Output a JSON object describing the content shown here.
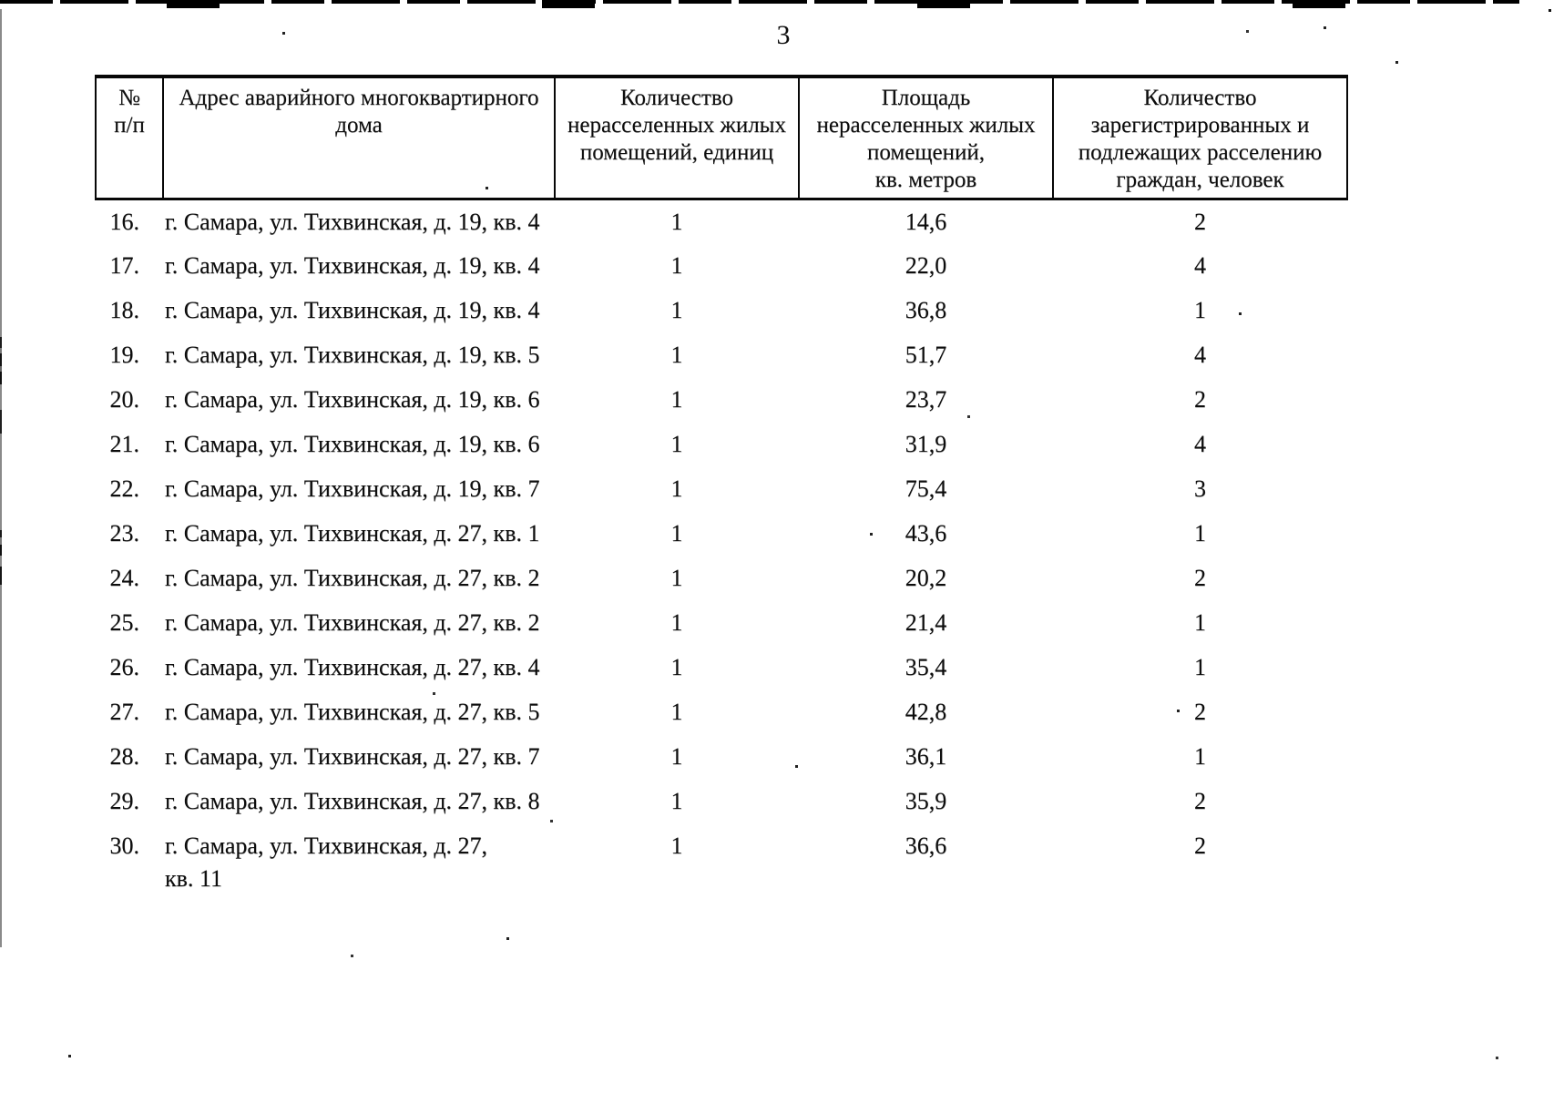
{
  "page": {
    "number": "3",
    "background": "#ffffff",
    "ink": "#0d0d0d"
  },
  "table": {
    "columns": [
      {
        "label": "№\nп/п"
      },
      {
        "label": "Адрес аварийного многоквартирного\nдома"
      },
      {
        "label": "Количество\nнерасселенных жилых\nпомещений, единиц"
      },
      {
        "label": "Площадь\nнерасселенных жилых\nпомещений,\nкв. метров"
      },
      {
        "label": "Количество\nзарегистрированных и\nподлежащих расселению\nграждан, человек"
      }
    ],
    "rows": [
      {
        "num": "16.",
        "address": "г. Самара, ул. Тихвинская, д. 19, кв. 4",
        "units": "1",
        "area": "14,6",
        "citizens": "2"
      },
      {
        "num": "17.",
        "address": "г. Самара, ул. Тихвинская, д. 19, кв. 4",
        "units": "1",
        "area": "22,0",
        "citizens": "4"
      },
      {
        "num": "18.",
        "address": "г. Самара, ул. Тихвинская, д. 19, кв. 4",
        "units": "1",
        "area": "36,8",
        "citizens": "1"
      },
      {
        "num": "19.",
        "address": "г. Самара, ул. Тихвинская, д. 19, кв. 5",
        "units": "1",
        "area": "51,7",
        "citizens": "4"
      },
      {
        "num": "20.",
        "address": "г. Самара, ул. Тихвинская, д. 19, кв. 6",
        "units": "1",
        "area": "23,7",
        "citizens": "2"
      },
      {
        "num": "21.",
        "address": "г. Самара, ул. Тихвинская, д. 19, кв. 6",
        "units": "1",
        "area": "31,9",
        "citizens": "4"
      },
      {
        "num": "22.",
        "address": "г. Самара, ул. Тихвинская, д. 19, кв. 7",
        "units": "1",
        "area": "75,4",
        "citizens": "3"
      },
      {
        "num": "23.",
        "address": "г. Самара, ул. Тихвинская, д. 27, кв. 1",
        "units": "1",
        "area": "43,6",
        "citizens": "1"
      },
      {
        "num": "24.",
        "address": "г. Самара, ул. Тихвинская, д. 27, кв. 2",
        "units": "1",
        "area": "20,2",
        "citizens": "2"
      },
      {
        "num": "25.",
        "address": "г. Самара, ул. Тихвинская, д. 27, кв. 2",
        "units": "1",
        "area": "21,4",
        "citizens": "1"
      },
      {
        "num": "26.",
        "address": "г. Самара, ул. Тихвинская, д. 27, кв. 4",
        "units": "1",
        "area": "35,4",
        "citizens": "1"
      },
      {
        "num": "27.",
        "address": "г. Самара, ул. Тихвинская, д. 27, кв. 5",
        "units": "1",
        "area": "42,8",
        "citizens": "2"
      },
      {
        "num": "28.",
        "address": "г. Самара, ул. Тихвинская, д. 27, кв. 7",
        "units": "1",
        "area": "36,1",
        "citizens": "1"
      },
      {
        "num": "29.",
        "address": "г. Самара, ул. Тихвинская, д. 27, кв. 8",
        "units": "1",
        "area": "35,9",
        "citizens": "2"
      },
      {
        "num": "30.",
        "address": "г. Самара, ул. Тихвинская, д. 27,\nкв. 11",
        "units": "1",
        "area": "36,6",
        "citizens": "2"
      }
    ]
  }
}
